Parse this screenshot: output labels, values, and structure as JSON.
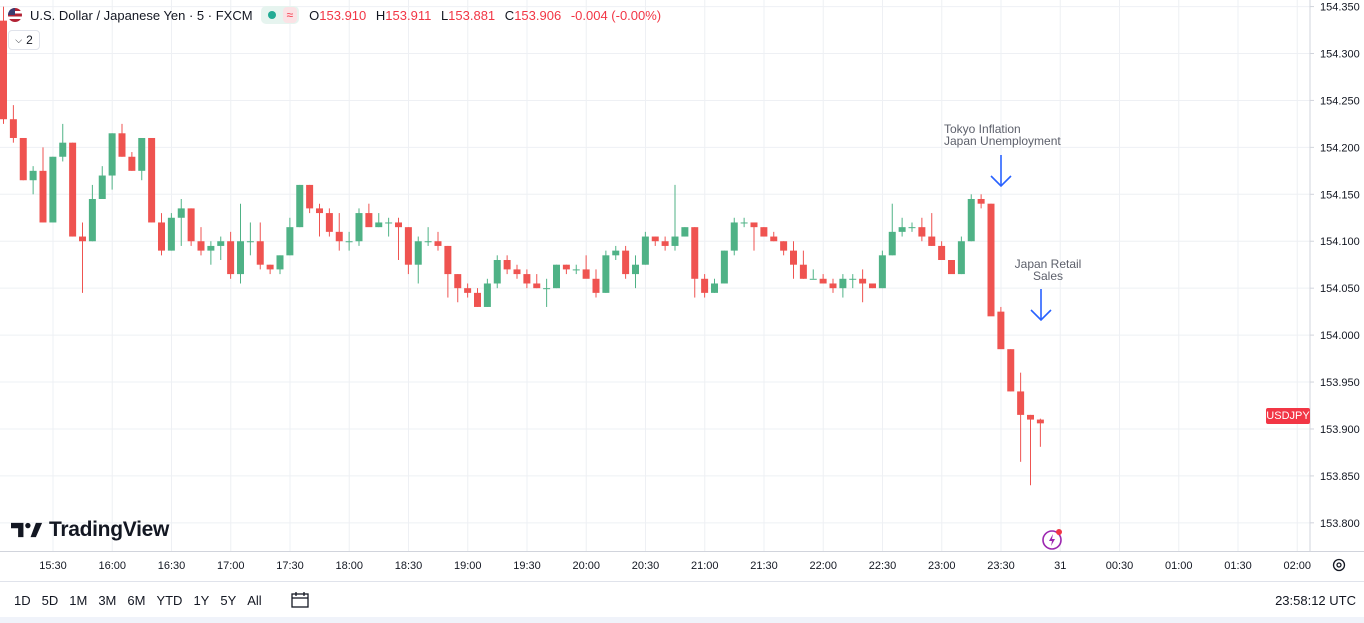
{
  "symbol": {
    "title": "U.S. Dollar / Japanese Yen · 5 · FXCM",
    "badge_icon": "≈",
    "ohlc": {
      "o_label": "O",
      "o": "153.910",
      "h_label": "H",
      "h": "153.911",
      "l_label": "L",
      "l": "153.881",
      "c_label": "C",
      "c": "153.906",
      "change": "-0.004 (-0.00%)"
    },
    "indicator_count": "2"
  },
  "last_price_label": "USDJPY",
  "annotations": {
    "event1": [
      "Tokyo Inflation",
      "Japan Unemployment"
    ],
    "event2": [
      "Japan Retail",
      "Sales"
    ]
  },
  "branding": "TradingView",
  "ranges": [
    "1D",
    "5D",
    "1M",
    "3M",
    "6M",
    "YTD",
    "1Y",
    "5Y",
    "All"
  ],
  "clock": "23:58:12 UTC",
  "colors": {
    "up": "#26a69a",
    "up_fill": "#4fb286",
    "down": "#ef5350",
    "grid": "#eef0f4",
    "arrow": "#2962ff",
    "accent": "#9c27b0"
  },
  "chart_data": {
    "type": "candlestick",
    "timeframe": "5",
    "y_ticks": [
      "154.350",
      "154.300",
      "154.250",
      "154.200",
      "154.150",
      "154.100",
      "154.050",
      "154.000",
      "153.950",
      "153.900",
      "153.850",
      "153.800"
    ],
    "ylim": [
      153.77,
      154.357
    ],
    "x_ticks": [
      "15:30",
      "16:00",
      "16:30",
      "17:00",
      "17:30",
      "18:00",
      "18:30",
      "19:00",
      "19:30",
      "20:00",
      "20:30",
      "21:00",
      "21:30",
      "22:00",
      "22:30",
      "23:00",
      "23:30",
      "31",
      "00:30",
      "01:00",
      "01:30",
      "02:00"
    ],
    "candles_ohlc": [
      [
        154.335,
        154.35,
        154.225,
        154.23
      ],
      [
        154.23,
        154.245,
        154.205,
        154.21
      ],
      [
        154.21,
        154.21,
        154.165,
        154.165
      ],
      [
        154.165,
        154.18,
        154.15,
        154.175
      ],
      [
        154.175,
        154.2,
        154.12,
        154.12
      ],
      [
        154.12,
        154.19,
        154.12,
        154.19
      ],
      [
        154.19,
        154.225,
        154.185,
        154.205
      ],
      [
        154.205,
        154.205,
        154.105,
        154.105
      ],
      [
        154.105,
        154.12,
        154.045,
        154.1
      ],
      [
        154.1,
        154.16,
        154.1,
        154.145
      ],
      [
        154.145,
        154.18,
        154.145,
        154.17
      ],
      [
        154.17,
        154.215,
        154.155,
        154.215
      ],
      [
        154.215,
        154.225,
        154.19,
        154.19
      ],
      [
        154.19,
        154.195,
        154.175,
        154.175
      ],
      [
        154.175,
        154.21,
        154.165,
        154.21
      ],
      [
        154.21,
        154.21,
        154.12,
        154.12
      ],
      [
        154.12,
        154.13,
        154.085,
        154.09
      ],
      [
        154.09,
        154.13,
        154.09,
        154.125
      ],
      [
        154.125,
        154.145,
        154.095,
        154.135
      ],
      [
        154.135,
        154.135,
        154.095,
        154.1
      ],
      [
        154.1,
        154.115,
        154.085,
        154.09
      ],
      [
        154.09,
        154.1,
        154.075,
        154.095
      ],
      [
        154.095,
        154.105,
        154.08,
        154.1
      ],
      [
        154.1,
        154.11,
        154.06,
        154.065
      ],
      [
        154.065,
        154.14,
        154.055,
        154.1
      ],
      [
        154.1,
        154.12,
        154.085,
        154.1
      ],
      [
        154.1,
        154.12,
        154.07,
        154.075
      ],
      [
        154.075,
        154.075,
        154.065,
        154.07
      ],
      [
        154.07,
        154.085,
        154.065,
        154.085
      ],
      [
        154.085,
        154.125,
        154.085,
        154.115
      ],
      [
        154.115,
        154.16,
        154.115,
        154.16
      ],
      [
        154.16,
        154.16,
        154.13,
        154.135
      ],
      [
        154.135,
        154.14,
        154.105,
        154.13
      ],
      [
        154.13,
        154.135,
        154.105,
        154.11
      ],
      [
        154.11,
        154.13,
        154.09,
        154.1
      ],
      [
        154.1,
        154.11,
        154.09,
        154.1
      ],
      [
        154.1,
        154.135,
        154.095,
        154.13
      ],
      [
        154.13,
        154.14,
        154.12,
        154.115
      ],
      [
        154.115,
        154.13,
        154.115,
        154.12
      ],
      [
        154.12,
        154.125,
        154.105,
        154.12
      ],
      [
        154.12,
        154.125,
        154.08,
        154.115
      ],
      [
        154.115,
        154.115,
        154.065,
        154.075
      ],
      [
        154.075,
        154.105,
        154.055,
        154.1
      ],
      [
        154.1,
        154.115,
        154.095,
        154.1
      ],
      [
        154.1,
        154.11,
        154.09,
        154.095
      ],
      [
        154.095,
        154.095,
        154.04,
        154.065
      ],
      [
        154.065,
        154.065,
        154.035,
        154.05
      ],
      [
        154.05,
        154.055,
        154.04,
        154.045
      ],
      [
        154.045,
        154.05,
        154.03,
        154.03
      ],
      [
        154.03,
        154.06,
        154.03,
        154.055
      ],
      [
        154.055,
        154.085,
        154.05,
        154.08
      ],
      [
        154.08,
        154.085,
        154.065,
        154.07
      ],
      [
        154.07,
        154.075,
        154.06,
        154.065
      ],
      [
        154.065,
        154.07,
        154.05,
        154.055
      ],
      [
        154.055,
        154.065,
        154.05,
        154.05
      ],
      [
        154.05,
        154.06,
        154.03,
        154.05
      ],
      [
        154.05,
        154.075,
        154.05,
        154.075
      ],
      [
        154.075,
        154.075,
        154.065,
        154.07
      ],
      [
        154.07,
        154.075,
        154.065,
        154.07
      ],
      [
        154.07,
        154.085,
        154.065,
        154.06
      ],
      [
        154.06,
        154.07,
        154.04,
        154.045
      ],
      [
        154.045,
        154.09,
        154.045,
        154.085
      ],
      [
        154.085,
        154.095,
        154.08,
        154.09
      ],
      [
        154.09,
        154.095,
        154.06,
        154.065
      ],
      [
        154.065,
        154.085,
        154.05,
        154.075
      ],
      [
        154.075,
        154.11,
        154.075,
        154.105
      ],
      [
        154.105,
        154.105,
        154.095,
        154.1
      ],
      [
        154.1,
        154.105,
        154.09,
        154.095
      ],
      [
        154.095,
        154.16,
        154.09,
        154.105
      ],
      [
        154.105,
        154.115,
        154.105,
        154.115
      ],
      [
        154.115,
        154.115,
        154.04,
        154.06
      ],
      [
        154.06,
        154.065,
        154.04,
        154.045
      ],
      [
        154.045,
        154.06,
        154.045,
        154.055
      ],
      [
        154.055,
        154.09,
        154.055,
        154.09
      ],
      [
        154.09,
        154.125,
        154.085,
        154.12
      ],
      [
        154.12,
        154.125,
        154.115,
        154.12
      ],
      [
        154.12,
        154.12,
        154.09,
        154.115
      ],
      [
        154.115,
        154.115,
        154.105,
        154.105
      ],
      [
        154.105,
        154.11,
        154.1,
        154.1
      ],
      [
        154.1,
        154.1,
        154.085,
        154.09
      ],
      [
        154.09,
        154.1,
        154.06,
        154.075
      ],
      [
        154.075,
        154.09,
        154.06,
        154.06
      ],
      [
        154.06,
        154.07,
        154.06,
        154.06
      ],
      [
        154.06,
        154.065,
        154.055,
        154.055
      ],
      [
        154.055,
        154.06,
        154.045,
        154.05
      ],
      [
        154.05,
        154.065,
        154.04,
        154.06
      ],
      [
        154.06,
        154.065,
        154.05,
        154.06
      ],
      [
        154.06,
        154.07,
        154.035,
        154.055
      ],
      [
        154.055,
        154.055,
        154.05,
        154.05
      ],
      [
        154.05,
        154.09,
        154.05,
        154.085
      ],
      [
        154.085,
        154.14,
        154.085,
        154.11
      ],
      [
        154.11,
        154.125,
        154.105,
        154.115
      ],
      [
        154.115,
        154.12,
        154.11,
        154.115
      ],
      [
        154.115,
        154.125,
        154.1,
        154.105
      ],
      [
        154.105,
        154.13,
        154.095,
        154.095
      ],
      [
        154.095,
        154.1,
        154.08,
        154.08
      ],
      [
        154.08,
        154.08,
        154.07,
        154.065
      ],
      [
        154.065,
        154.105,
        154.065,
        154.1
      ],
      [
        154.1,
        154.15,
        154.1,
        154.145
      ],
      [
        154.145,
        154.15,
        154.135,
        154.14
      ],
      [
        154.14,
        154.14,
        154.03,
        154.02
      ],
      [
        154.025,
        154.03,
        153.99,
        153.985
      ],
      [
        153.985,
        153.985,
        153.94,
        153.94
      ],
      [
        153.94,
        153.96,
        153.865,
        153.915
      ],
      [
        153.915,
        153.915,
        153.84,
        153.91
      ],
      [
        153.91,
        153.911,
        153.881,
        153.906
      ]
    ]
  }
}
